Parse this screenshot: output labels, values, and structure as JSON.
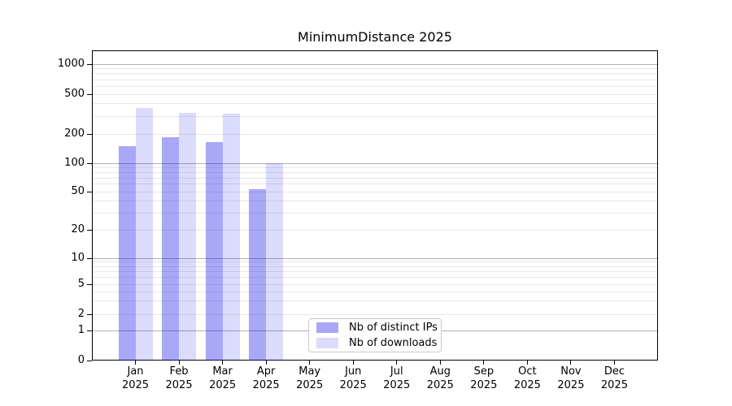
{
  "chart_data": {
    "type": "bar",
    "title": "MinimumDistance 2025",
    "categories": [
      "Jan",
      "Feb",
      "Mar",
      "Apr",
      "May",
      "Jun",
      "Jul",
      "Aug",
      "Sep",
      "Oct",
      "Nov",
      "Dec"
    ],
    "category_year": "2025",
    "series": [
      {
        "name": "Nb of distinct IPs",
        "color": "rgba(0,0,230,0.34)",
        "color_hex": "#a8a8f7",
        "values": [
          150,
          185,
          165,
          53,
          0,
          0,
          0,
          0,
          0,
          0,
          0,
          0
        ]
      },
      {
        "name": "Nb of downloads",
        "color": "rgba(0,0,230,0.14)",
        "color_hex": "#dbdbfb",
        "values": [
          365,
          325,
          320,
          100,
          0,
          0,
          0,
          0,
          0,
          0,
          0,
          0
        ]
      }
    ],
    "xlabel": "",
    "ylabel": "",
    "yscale": "symlog",
    "ylim": [
      0,
      1400
    ],
    "yticks": [
      0,
      1,
      2,
      5,
      10,
      20,
      50,
      100,
      200,
      500,
      1000
    ],
    "grid": true,
    "grid_major": [
      1,
      10,
      100,
      1000
    ],
    "grid_minor": [
      2,
      3,
      4,
      5,
      6,
      7,
      8,
      9,
      20,
      30,
      40,
      50,
      60,
      70,
      80,
      90,
      200,
      300,
      400,
      500,
      600,
      700,
      800,
      900
    ],
    "grid_major_color": "#b0b0b0",
    "grid_minor_color": "#e8e8e8",
    "axis_color": "#000000",
    "legend_position": "lower-center"
  }
}
